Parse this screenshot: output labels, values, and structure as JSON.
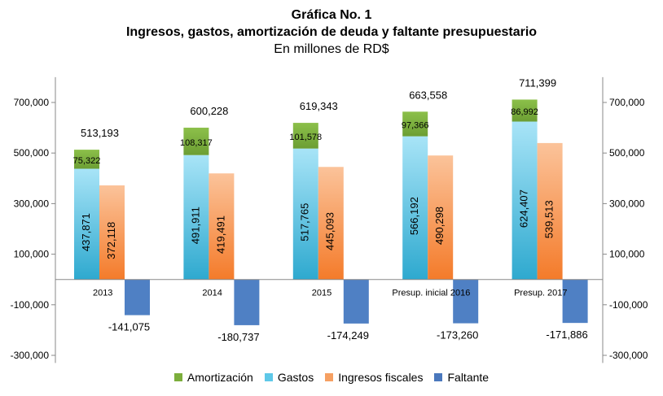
{
  "title": "Gráfica No. 1",
  "subtitle": "Ingresos, gastos, amortización de deuda y faltante presupuestario",
  "units": "En millones de RD$",
  "chart_data": {
    "type": "bar",
    "categories": [
      "2013",
      "2014",
      "2015",
      "Presup. inicial 2016",
      "Presup. 2017"
    ],
    "series": [
      {
        "name": "Amortización",
        "values": [
          75322,
          108317,
          101578,
          97366,
          86992
        ],
        "color": "#7cae3c"
      },
      {
        "name": "Gastos",
        "values": [
          437871,
          491911,
          517765,
          566192,
          624407
        ],
        "color": "#3fb6d8"
      },
      {
        "name": "Ingresos fiscales",
        "values": [
          372118,
          419491,
          445093,
          490298,
          539513
        ],
        "color": "#f6883c"
      },
      {
        "name": "Faltante",
        "values": [
          -141075,
          -180737,
          -174249,
          -173260,
          -171886
        ],
        "color": "#4a78bd"
      }
    ],
    "stack_labels": [
      "513,193",
      "600,228",
      "619,343",
      "663,558",
      "711,399"
    ],
    "amort_labels": [
      "75,322",
      "108,317",
      "101,578",
      "97,366",
      "86,992"
    ],
    "gastos_labels": [
      "437,871",
      "491,911",
      "517,765",
      "566,192",
      "624,407"
    ],
    "ingresos_labels": [
      "372,118",
      "419,491",
      "445,093",
      "490,298",
      "539,513"
    ],
    "faltante_labels": [
      "-141,075",
      "-180,737",
      "-174,249",
      "-173,260",
      "-171,886"
    ],
    "yticks": [
      "700,000",
      "500,000",
      "300,000",
      "100,000",
      "-100,000",
      "-300,000"
    ],
    "ylim": [
      -330000,
      800000
    ],
    "legend_position": "bottom"
  }
}
